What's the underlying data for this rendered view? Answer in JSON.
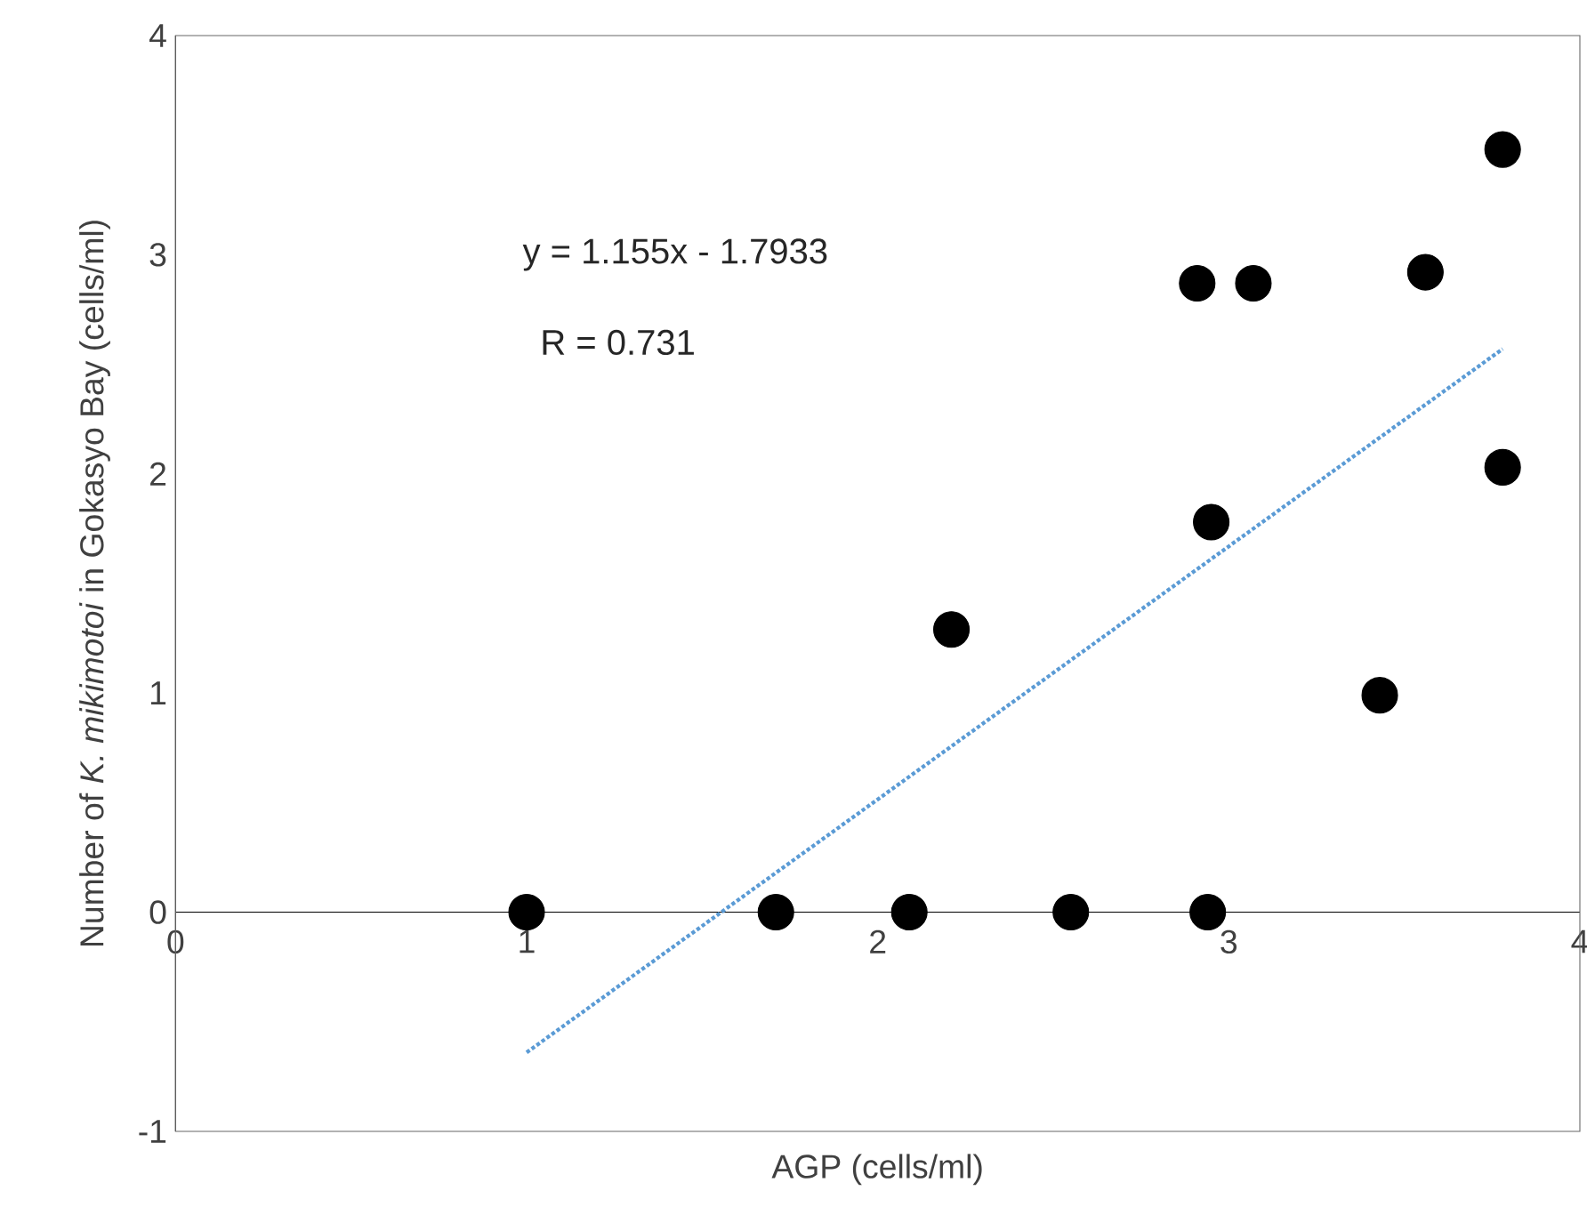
{
  "chart_data": {
    "type": "scatter",
    "xlabel": "AGP (cells/ml)",
    "ylabel": "Number  of *K. mikimotoi* in Gokasyo Bay (cells/ml)",
    "xlim": [
      0,
      4
    ],
    "ylim": [
      -1,
      4
    ],
    "xticks": [
      0,
      1,
      2,
      3,
      4
    ],
    "yticks": [
      -1,
      0,
      1,
      2,
      3,
      4
    ],
    "marker": "circle",
    "annotations": [
      "y = 1.155x - 1.7933",
      "R = 0.731"
    ],
    "series": [
      {
        "color": "#000000",
        "x": [
          1.0,
          1.71,
          2.09,
          2.55,
          2.94,
          2.21,
          2.91,
          3.07,
          2.95,
          3.56,
          3.43,
          3.78,
          3.78
        ],
        "values": [
          0,
          0,
          0,
          0,
          0,
          1.29,
          2.87,
          2.87,
          1.78,
          2.92,
          0.99,
          3.48,
          2.03
        ]
      },
      {
        "type": "line",
        "color": "#5b9bd5",
        "line_style": "dotted",
        "marker": "none",
        "x": [
          1.0,
          3.78
        ],
        "values": [
          -0.64,
          2.57
        ]
      }
    ]
  }
}
